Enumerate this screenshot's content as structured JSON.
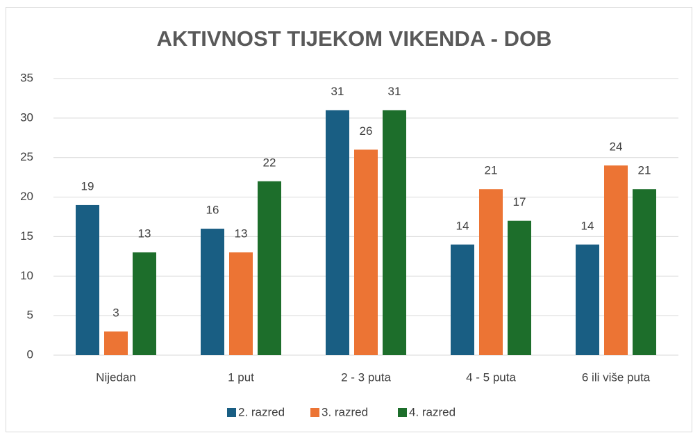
{
  "chart_data": {
    "type": "bar",
    "title": "AKTIVNOST TIJEKOM VIKENDA - DOB",
    "categories": [
      "Nijedan",
      "1 put",
      "2 - 3 puta",
      "4 - 5 puta",
      "6 ili više puta"
    ],
    "series": [
      {
        "name": "2. razred",
        "color": "#195e83",
        "values": [
          19,
          16,
          31,
          14,
          14
        ]
      },
      {
        "name": "3. razred",
        "color": "#ec7434",
        "values": [
          3,
          13,
          26,
          21,
          24
        ]
      },
      {
        "name": "4. razred",
        "color": "#1d6e2b",
        "values": [
          13,
          22,
          31,
          17,
          21
        ]
      }
    ],
    "ylim": [
      0,
      35
    ],
    "yticks": [
      0,
      5,
      10,
      15,
      20,
      25,
      30,
      35
    ],
    "grid": true,
    "legend": "bottom"
  }
}
